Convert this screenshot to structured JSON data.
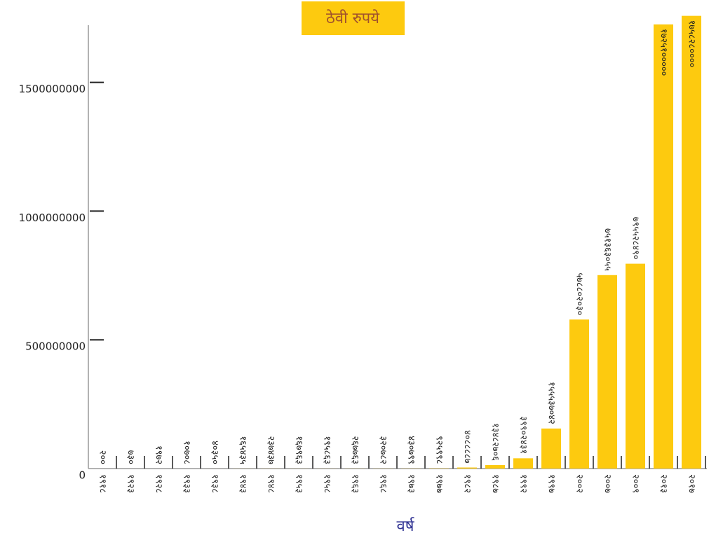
{
  "chart_data": {
    "type": "bar",
    "title": "ठेवी रुपये",
    "x_label": "वर्ष",
    "categories": [
      "१९१८",
      "१९२३",
      "१९२८",
      "१९३३",
      "१९३८",
      "१९४३",
      "१९४८",
      "१९५३",
      "१९५८",
      "१९६३",
      "१९६८",
      "१९७३",
      "१९७७",
      "१९८२",
      "१९८७",
      "१९९२",
      "१९९७",
      "२००२",
      "२००७",
      "२००९",
      "२०१३",
      "२०१७"
    ],
    "values": [
      200,
      730,
      1972,
      10708,
      40350,
      165435,
      237437,
      167963,
      195863,
      267763,
      320782,
      430799,
      925998,
      4088887,
      13482706,
      39902431,
      155537042,
      578802030,
      751363055,
      795528490,
      1725100000,
      1758280000
    ],
    "value_labels": [
      "२००",
      "७३०",
      "१९७२",
      "१०७०८",
      "४०३५०",
      "१६५४३५",
      "२३७४३७",
      "१६७९६३",
      "१९५८६३",
      "२६७७६३",
      "३२०७८२",
      "४३०७९९",
      "९२५९९८",
      "४०८८८८७",
      "१३४८२७०६",
      "३९९०२४३१",
      "१५५५३७०४२",
      "५७८८०२०३०",
      "७५१३६३०५५",
      "७९५५२८४९०",
      "१७२५१०००००",
      "१७५८२८००००"
    ],
    "color": "#fdca0f",
    "ylim": [
      0,
      1760000000
    ],
    "yticks": [
      0,
      500000000,
      1000000000,
      1500000000
    ]
  }
}
